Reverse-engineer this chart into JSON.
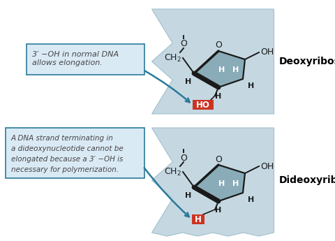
{
  "fig_width": 4.81,
  "fig_height": 3.45,
  "dpi": 100,
  "bg_color": "#ffffff",
  "shape_color": "#c5d8e2",
  "shape_edge_color": "#a0bfcc",
  "ring_color": "#8aacb8",
  "bond_color": "#1a1a1a",
  "arrow_color": "#2a7a9a",
  "box_fill_color": "#daeaf5",
  "box_edge_color": "#2a7a9a",
  "highlight_color": "#cc3322",
  "text_color": "#444444",
  "label_color": "#000000",
  "title1": "Deoxyribose",
  "title2": "Dideoxyribose",
  "box1_line1": "3′ −OH in normal DNA",
  "box1_line2": "allows elongation.",
  "box2_line1": "A DNA strand terminating in",
  "box2_line2": "a dideoxynucleotide cannot be",
  "box2_line3": "elongated because a 3′ −OH is",
  "box2_line4": "necessary for polymerization."
}
